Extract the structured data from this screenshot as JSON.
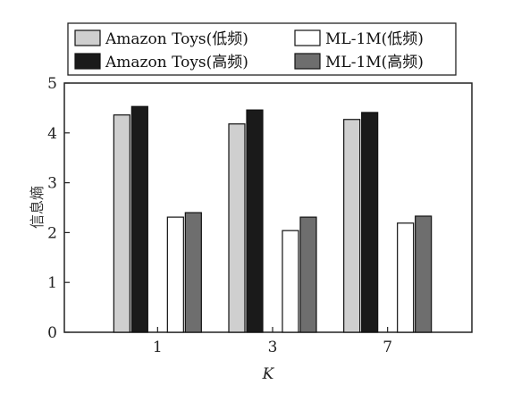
{
  "chart_data": {
    "type": "bar",
    "categories": [
      "1",
      "3",
      "7"
    ],
    "xlabel": "K",
    "ylabel": "信息熵",
    "ylim": [
      0,
      5
    ],
    "yticks": [
      "0",
      "1",
      "2",
      "3",
      "4",
      "5"
    ],
    "grid": false,
    "legend_position": "top",
    "series": [
      {
        "name": "Amazon Toys(低频)",
        "values": [
          4.36,
          4.18,
          4.27
        ],
        "color": "#cfcfcf"
      },
      {
        "name": "Amazon Toys(高频)",
        "values": [
          4.53,
          4.46,
          4.41
        ],
        "color": "#1a1a1a"
      },
      {
        "name": "ML-1M(低频)",
        "values": [
          2.31,
          2.04,
          2.19
        ],
        "color": "#ffffff"
      },
      {
        "name": "ML-1M(高频)",
        "values": [
          2.4,
          2.31,
          2.33
        ],
        "color": "#6e6e6e"
      }
    ]
  }
}
